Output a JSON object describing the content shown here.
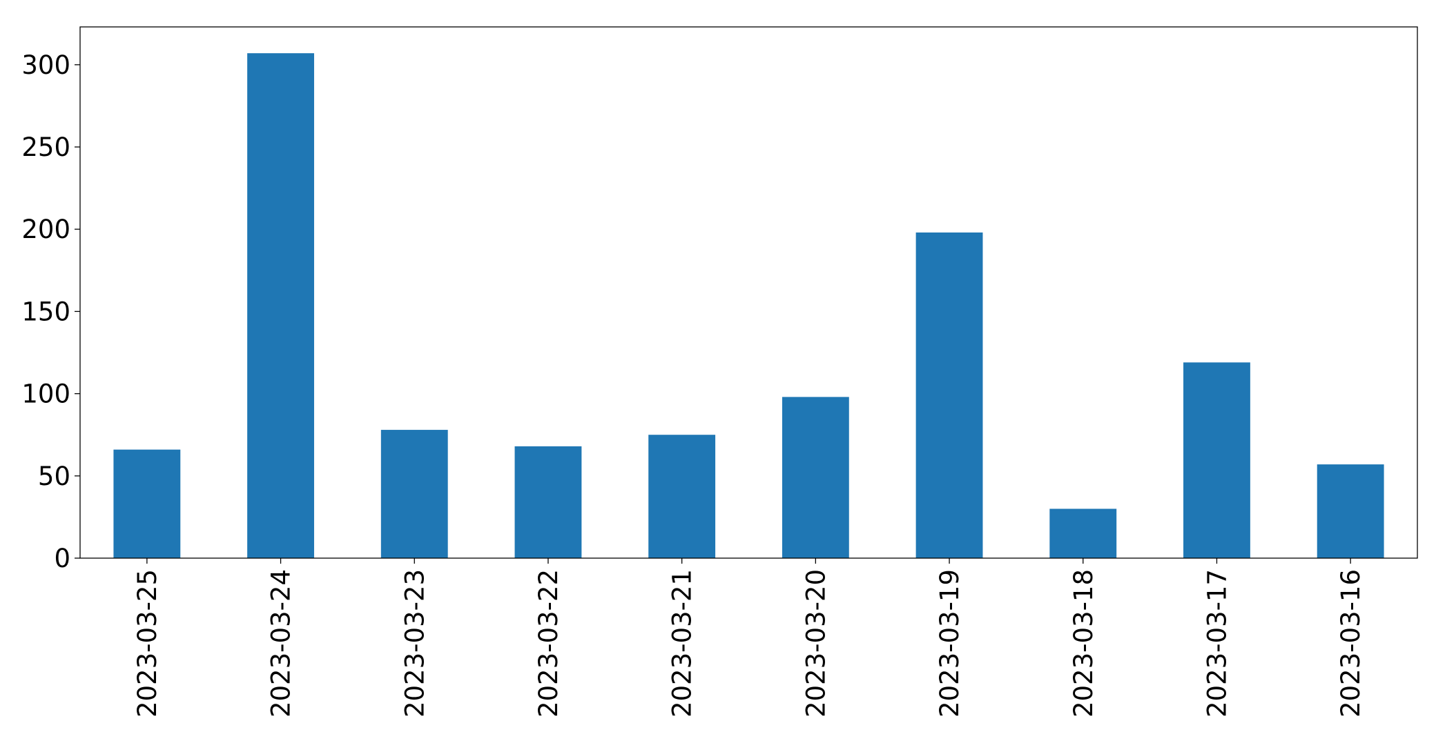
{
  "chart_data": {
    "type": "bar",
    "categories": [
      "2023-03-25",
      "2023-03-24",
      "2023-03-23",
      "2023-03-22",
      "2023-03-21",
      "2023-03-20",
      "2023-03-19",
      "2023-03-18",
      "2023-03-17",
      "2023-03-16"
    ],
    "values": [
      66,
      307,
      78,
      68,
      75,
      98,
      198,
      30,
      119,
      57
    ],
    "color": "#1f77b4",
    "ylim": [
      0,
      323
    ],
    "yticks": [
      0,
      50,
      100,
      150,
      200,
      250,
      300
    ],
    "grid": false
  }
}
